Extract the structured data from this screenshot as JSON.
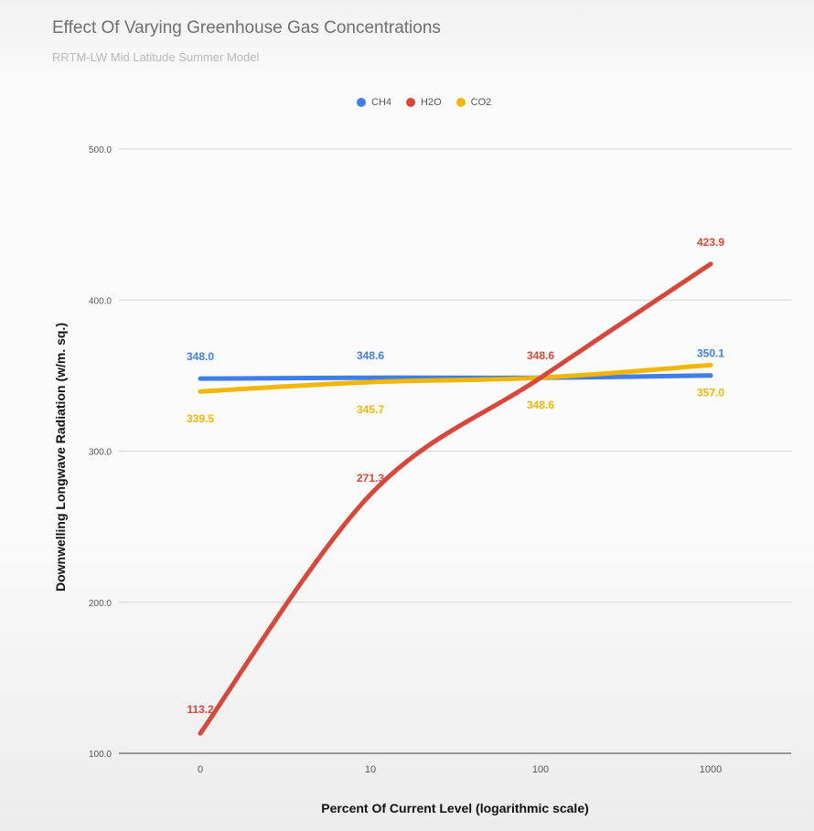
{
  "chart_data": {
    "type": "line",
    "title": "Effect Of Varying Greenhouse Gas Concentrations",
    "subtitle": "RRTM-LW Mid Latitude Summer Model",
    "xlabel": "Percent Of Current Level (logarithmic scale)",
    "ylabel": "Downwelling Longwave Radiation (w/m. sq.)",
    "categories": [
      "0",
      "10",
      "100",
      "1000"
    ],
    "ylim": [
      100,
      500
    ],
    "yticks": [
      "100.0",
      "200.0",
      "300.0",
      "400.0",
      "500.0"
    ],
    "grid": true,
    "legend_position": "top",
    "series": [
      {
        "name": "CH4",
        "color": "#3f7ee8",
        "values": [
          348.0,
          348.6,
          348.6,
          350.1
        ],
        "labels": [
          "348.0",
          "348.6",
          "",
          "350.1"
        ],
        "label_side": [
          "above",
          "above",
          "above",
          "above"
        ]
      },
      {
        "name": "H2O",
        "color": "#d8473a",
        "values": [
          113.2,
          271.3,
          348.6,
          423.9
        ],
        "labels": [
          "113.2",
          "271.3",
          "348.6",
          "423.9"
        ],
        "label_side": [
          "above",
          "above",
          "above",
          "above"
        ]
      },
      {
        "name": "CO2",
        "color": "#f2b705",
        "values": [
          339.5,
          345.7,
          348.6,
          357.0
        ],
        "labels": [
          "339.5",
          "345.7",
          "348.6",
          "357.0"
        ],
        "label_side": [
          "below",
          "below",
          "below",
          "below"
        ]
      }
    ]
  }
}
